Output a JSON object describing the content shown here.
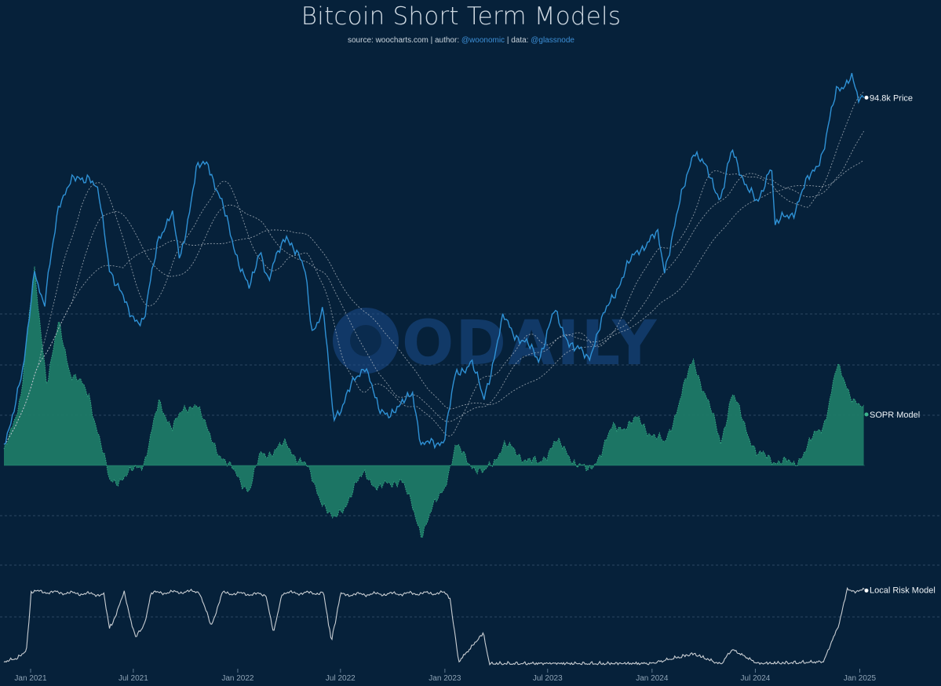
{
  "header": {
    "title": "Bitcoin Short Term Models",
    "source_prefix": "source: ",
    "source_value": "woocharts.com",
    "author_prefix": " | author: ",
    "author_value": "@woonomic",
    "data_prefix": " | data: ",
    "data_value": "@glassnode"
  },
  "watermark": "ODAILY",
  "colors": {
    "background": "#06213a",
    "price": "#2f92d6",
    "sopr_fill": "#1e7a66",
    "sopr_line": "#3bb48c",
    "risk": "#c9ced3",
    "grid": "#3a5670",
    "moving_average": "#b9c2ca"
  },
  "chart_data": {
    "type": "line",
    "x_axis": {
      "type": "date",
      "range": [
        "2020-11-15",
        "2025-01-10"
      ],
      "ticks": [
        "Jan 2021",
        "Jul 2021",
        "Jan 2022",
        "Jul 2022",
        "Jan 2023",
        "Jul 2023",
        "Jan 2024",
        "Jul 2024",
        "Jan 2025"
      ]
    },
    "y_scale": "log",
    "grid": "horizontal dashed lines",
    "legend": "end-of-line labels on right",
    "series": [
      {
        "name": "Price",
        "end_label": "94.8k Price",
        "unit": "USD",
        "points": [
          [
            "2020-11-15",
            16000
          ],
          [
            "2020-12-01",
            19000
          ],
          [
            "2020-12-20",
            23500
          ],
          [
            "2021-01-08",
            40000
          ],
          [
            "2021-01-25",
            32000
          ],
          [
            "2021-02-20",
            56000
          ],
          [
            "2021-03-13",
            61000
          ],
          [
            "2021-04-14",
            64000
          ],
          [
            "2021-05-01",
            57000
          ],
          [
            "2021-05-20",
            40000
          ],
          [
            "2021-06-22",
            31500
          ],
          [
            "2021-07-20",
            30000
          ],
          [
            "2021-08-15",
            47000
          ],
          [
            "2021-09-07",
            52000
          ],
          [
            "2021-09-21",
            41000
          ],
          [
            "2021-10-20",
            65000
          ],
          [
            "2021-11-10",
            68000
          ],
          [
            "2021-11-30",
            57000
          ],
          [
            "2021-12-20",
            46500
          ],
          [
            "2022-01-22",
            35000
          ],
          [
            "2022-02-10",
            44000
          ],
          [
            "2022-02-24",
            37000
          ],
          [
            "2022-03-28",
            47500
          ],
          [
            "2022-04-30",
            38500
          ],
          [
            "2022-05-12",
            29000
          ],
          [
            "2022-06-01",
            31500
          ],
          [
            "2022-06-18",
            18500
          ],
          [
            "2022-07-01",
            19300
          ],
          [
            "2022-08-14",
            24400
          ],
          [
            "2022-09-06",
            18800
          ],
          [
            "2022-10-15",
            19200
          ],
          [
            "2022-11-05",
            21200
          ],
          [
            "2022-11-21",
            15700
          ],
          [
            "2022-12-31",
            16500
          ],
          [
            "2023-01-20",
            22800
          ],
          [
            "2023-02-16",
            24600
          ],
          [
            "2023-03-10",
            20100
          ],
          [
            "2023-04-14",
            30500
          ],
          [
            "2023-05-20",
            26900
          ],
          [
            "2023-06-15",
            25000
          ],
          [
            "2023-07-13",
            31400
          ],
          [
            "2023-08-17",
            26000
          ],
          [
            "2023-09-11",
            25100
          ],
          [
            "2023-10-24",
            34500
          ],
          [
            "2023-12-08",
            43800
          ],
          [
            "2024-01-11",
            46600
          ],
          [
            "2024-01-23",
            39500
          ],
          [
            "2024-03-14",
            73100
          ],
          [
            "2024-05-01",
            57000
          ],
          [
            "2024-05-21",
            71500
          ],
          [
            "2024-07-05",
            54000
          ],
          [
            "2024-07-29",
            69000
          ],
          [
            "2024-08-05",
            49000
          ],
          [
            "2024-09-06",
            53000
          ],
          [
            "2024-10-29",
            72500
          ],
          [
            "2024-11-22",
            99000
          ],
          [
            "2024-12-17",
            106000
          ],
          [
            "2024-12-30",
            92000
          ],
          [
            "2025-01-10",
            94800
          ]
        ]
      },
      {
        "name": "SOPR Model",
        "end_label": "SOPR Model",
        "points": [
          [
            "2020-11-15",
            0.05
          ],
          [
            "2020-12-15",
            0.35
          ],
          [
            "2021-01-08",
            0.95
          ],
          [
            "2021-01-30",
            0.4
          ],
          [
            "2021-02-20",
            0.7
          ],
          [
            "2021-03-13",
            0.45
          ],
          [
            "2021-04-14",
            0.35
          ],
          [
            "2021-05-20",
            -0.08
          ],
          [
            "2021-06-22",
            -0.05
          ],
          [
            "2021-07-20",
            0.02
          ],
          [
            "2021-08-15",
            0.3
          ],
          [
            "2021-09-07",
            0.2
          ],
          [
            "2021-10-20",
            0.32
          ],
          [
            "2021-11-10",
            0.15
          ],
          [
            "2021-12-20",
            -0.02
          ],
          [
            "2022-01-22",
            -0.12
          ],
          [
            "2022-02-10",
            0.05
          ],
          [
            "2022-03-28",
            0.1
          ],
          [
            "2022-04-30",
            0.0
          ],
          [
            "2022-06-18",
            -0.28
          ],
          [
            "2022-08-14",
            -0.03
          ],
          [
            "2022-09-06",
            -0.12
          ],
          [
            "2022-10-15",
            -0.06
          ],
          [
            "2022-11-21",
            -0.33
          ],
          [
            "2022-12-31",
            -0.1
          ],
          [
            "2023-01-20",
            0.09
          ],
          [
            "2023-03-10",
            -0.05
          ],
          [
            "2023-04-14",
            0.1
          ],
          [
            "2023-06-15",
            0.0
          ],
          [
            "2023-07-13",
            0.12
          ],
          [
            "2023-09-11",
            -0.04
          ],
          [
            "2023-10-24",
            0.18
          ],
          [
            "2023-12-08",
            0.22
          ],
          [
            "2024-01-23",
            0.1
          ],
          [
            "2024-03-14",
            0.52
          ],
          [
            "2024-05-01",
            0.12
          ],
          [
            "2024-05-21",
            0.35
          ],
          [
            "2024-07-05",
            0.05
          ],
          [
            "2024-08-05",
            0.03
          ],
          [
            "2024-09-06",
            0.0
          ],
          [
            "2024-10-29",
            0.2
          ],
          [
            "2024-11-22",
            0.48
          ],
          [
            "2024-12-17",
            0.35
          ],
          [
            "2025-01-10",
            0.25
          ]
        ]
      },
      {
        "name": "Local Risk Model",
        "end_label": "Local Risk Model",
        "y_range": [
          0,
          1
        ],
        "points": [
          [
            "2020-11-15",
            0.05
          ],
          [
            "2020-12-10",
            0.1
          ],
          [
            "2020-12-25",
            0.2
          ],
          [
            "2021-01-02",
            0.92
          ],
          [
            "2021-05-10",
            0.88
          ],
          [
            "2021-05-20",
            0.45
          ],
          [
            "2021-06-15",
            0.9
          ],
          [
            "2021-07-05",
            0.35
          ],
          [
            "2021-07-20",
            0.5
          ],
          [
            "2021-08-01",
            0.9
          ],
          [
            "2021-10-25",
            0.92
          ],
          [
            "2021-11-15",
            0.5
          ],
          [
            "2021-12-05",
            0.9
          ],
          [
            "2022-02-20",
            0.88
          ],
          [
            "2022-03-05",
            0.4
          ],
          [
            "2022-03-20",
            0.9
          ],
          [
            "2022-06-01",
            0.9
          ],
          [
            "2022-06-15",
            0.3
          ],
          [
            "2022-07-01",
            0.88
          ],
          [
            "2022-12-31",
            0.9
          ],
          [
            "2023-01-10",
            0.85
          ],
          [
            "2023-01-25",
            0.05
          ],
          [
            "2023-03-10",
            0.4
          ],
          [
            "2023-03-20",
            0.03
          ],
          [
            "2023-12-31",
            0.03
          ],
          [
            "2024-03-14",
            0.15
          ],
          [
            "2024-05-01",
            0.02
          ],
          [
            "2024-05-21",
            0.2
          ],
          [
            "2024-07-05",
            0.03
          ],
          [
            "2024-10-29",
            0.05
          ],
          [
            "2024-11-22",
            0.45
          ],
          [
            "2024-12-10",
            0.93
          ],
          [
            "2025-01-10",
            0.93
          ]
        ]
      }
    ]
  }
}
